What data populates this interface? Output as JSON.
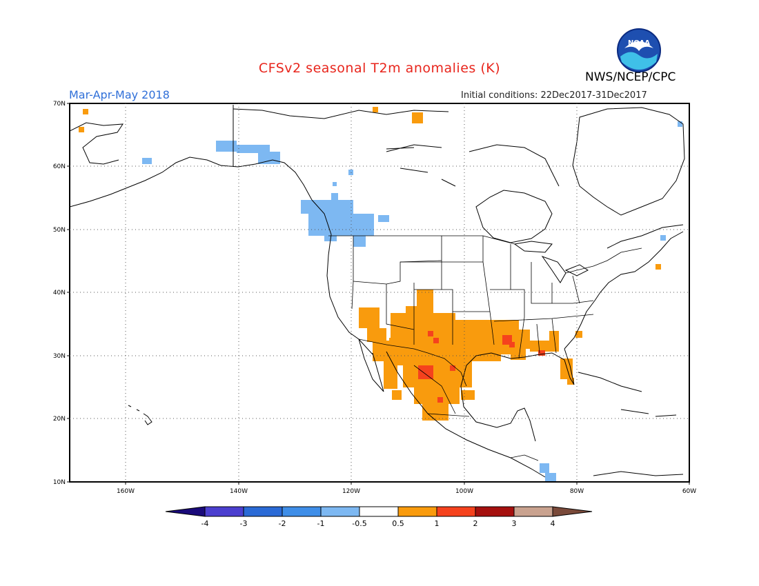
{
  "title": "CFSv2 seasonal T2m anomalies (K)",
  "agency": "NWS/NCEP/CPC",
  "season": "Mar-Apr-May 2018",
  "initial_conditions": "Initial conditions: 22Dec2017-31Dec2017",
  "logo_text": "NOAA",
  "lat_labels": [
    "70N",
    "60N",
    "50N",
    "40N",
    "30N",
    "20N",
    "10N"
  ],
  "lon_labels": [
    "160W",
    "140W",
    "120W",
    "100W",
    "80W",
    "60W"
  ],
  "colorbar": {
    "labels": [
      "-4",
      "-3",
      "-2",
      "-1",
      "-0.5",
      "0.5",
      "1",
      "2",
      "3",
      "4"
    ],
    "colors": [
      "#1a0a7a",
      "#4b3fcf",
      "#2a6ad6",
      "#3f8ee8",
      "#7db8f2",
      "#ffffff",
      "#f99b0d",
      "#f5421d",
      "#a5100e",
      "#c9a28f",
      "#7a4a3a"
    ]
  },
  "colors": {
    "warm_05_1": "#f99b0d",
    "warm_1_2": "#f5421d",
    "cool_05_1": "#7db8f2",
    "title": "#e8251c",
    "season": "#2f6fd8"
  }
}
